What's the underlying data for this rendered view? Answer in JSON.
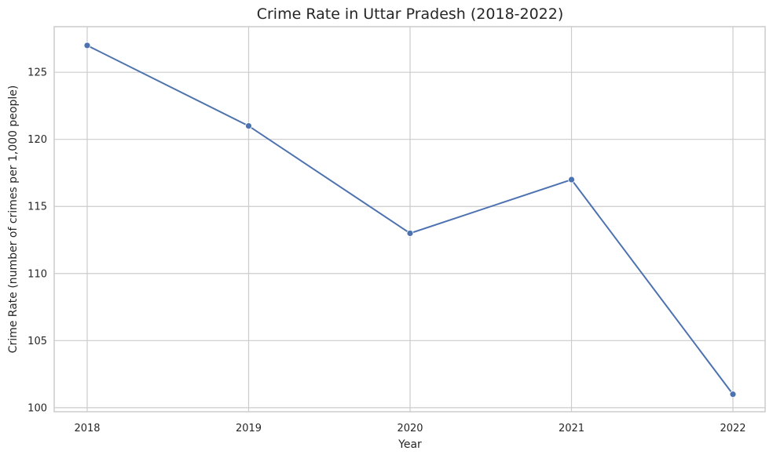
{
  "chart_data": {
    "type": "line",
    "title": "Crime Rate in Uttar Pradesh (2018-2022)",
    "xlabel": "Year",
    "ylabel": "Crime Rate (number of crimes per 1,000 people)",
    "x": [
      "2018",
      "2019",
      "2020",
      "2021",
      "2022"
    ],
    "series": [
      {
        "values": [
          127,
          121,
          113,
          117,
          101
        ]
      }
    ],
    "ylim": [
      99.7,
      128.4
    ],
    "yticks": [
      100,
      105,
      110,
      115,
      120,
      125
    ],
    "grid": true,
    "line_color": "#4c72b0",
    "marker": "circle"
  }
}
